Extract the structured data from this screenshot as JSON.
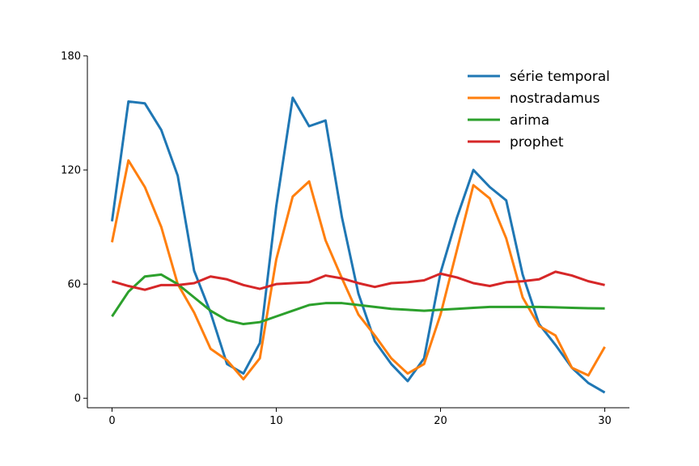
{
  "chart_data": {
    "type": "line",
    "title": "",
    "xlabel": "",
    "ylabel": "",
    "xlim": [
      -1.5,
      31.5
    ],
    "ylim": [
      -5,
      180
    ],
    "xticks": [
      0,
      10,
      20,
      30
    ],
    "yticks": [
      0,
      60,
      120,
      180
    ],
    "x": [
      0,
      1,
      2,
      3,
      4,
      5,
      6,
      7,
      8,
      9,
      10,
      11,
      12,
      13,
      14,
      15,
      16,
      17,
      18,
      19,
      20,
      21,
      22,
      23,
      24,
      25,
      26,
      27,
      28,
      29,
      30
    ],
    "grid": false,
    "legend_position": "top-right",
    "series": [
      {
        "name": "série temporal",
        "color": "#1f77b4",
        "values": [
          93,
          156,
          155,
          141,
          117,
          67,
          45,
          18,
          13,
          29,
          101,
          158,
          143,
          146,
          95,
          55,
          30,
          18,
          9,
          21,
          66,
          95,
          120,
          111,
          104,
          65,
          39,
          28,
          16,
          8,
          3
        ]
      },
      {
        "name": "nostradamus",
        "color": "#ff7f0e",
        "values": [
          82,
          125,
          111,
          90,
          60,
          45,
          26,
          20,
          10,
          21,
          73,
          106,
          114,
          83,
          63,
          44,
          33,
          21,
          13,
          18,
          44,
          78,
          112,
          105,
          84,
          53,
          38,
          33,
          16,
          12,
          27
        ]
      },
      {
        "name": "arima",
        "color": "#2ca02c",
        "values": [
          43,
          56,
          64,
          65,
          60,
          53,
          46,
          41,
          39,
          40,
          43,
          46,
          49,
          50,
          50,
          49,
          48,
          47,
          46.5,
          46,
          46.5,
          47,
          47.5,
          48,
          48,
          48,
          48,
          47.8,
          47.5,
          47.3,
          47.2
        ]
      },
      {
        "name": "prophet",
        "color": "#d62728",
        "values": [
          61.5,
          59,
          57,
          59.5,
          59.5,
          60.5,
          64,
          62.5,
          59.5,
          57.5,
          60,
          60.5,
          61,
          64.5,
          63,
          60.5,
          58.5,
          60.5,
          61,
          62,
          65.5,
          63.5,
          60.5,
          59,
          61,
          61.5,
          62.5,
          66.5,
          64.5,
          61.5,
          59.5
        ]
      }
    ]
  }
}
